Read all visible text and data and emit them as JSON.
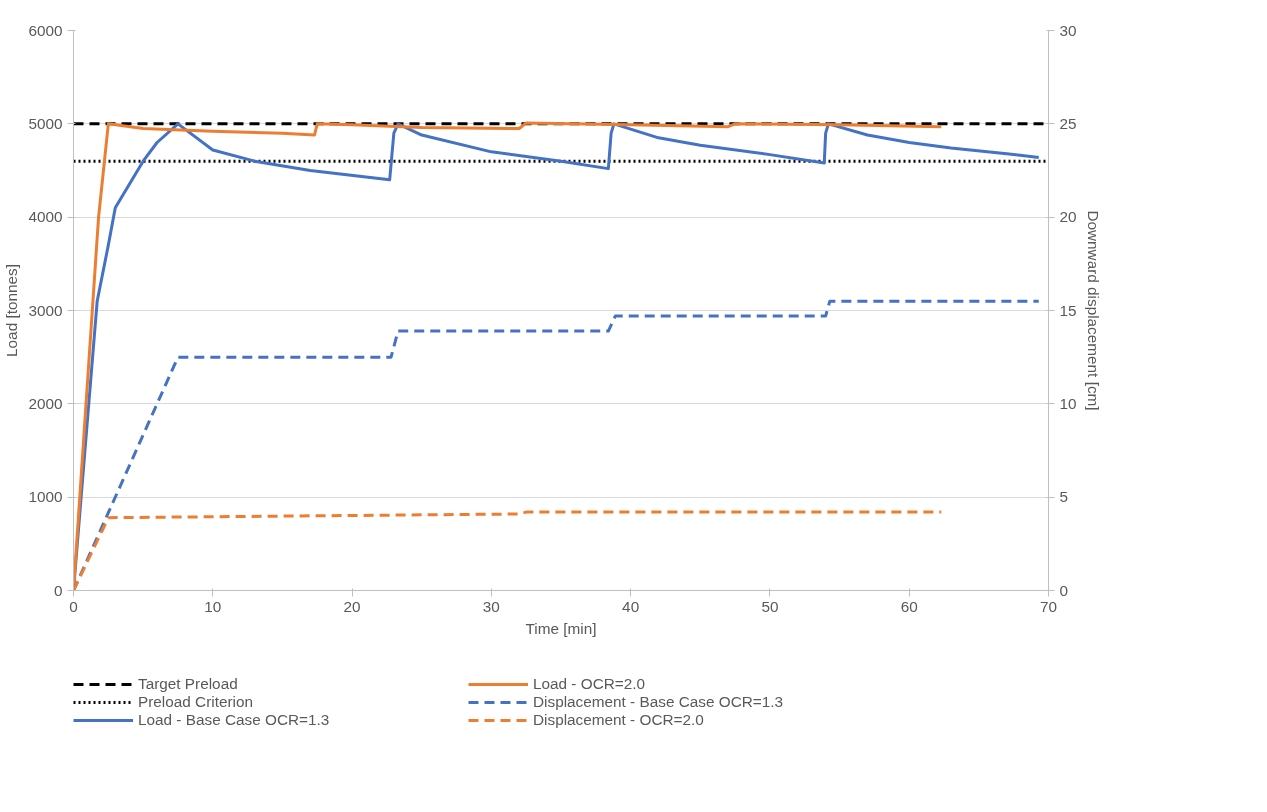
{
  "chart_data": {
    "type": "line",
    "xlabel": "Time [min]",
    "ylabel": "Load [tonnes]",
    "y2label": "Downward displacement [cm]",
    "xlim": [
      0,
      70
    ],
    "xticks": [
      0,
      10,
      20,
      30,
      40,
      50,
      60,
      70
    ],
    "ylim": [
      0,
      6000
    ],
    "yticks": [
      0,
      1000,
      2000,
      3000,
      4000,
      5000,
      6000
    ],
    "y2lim": [
      0,
      30
    ],
    "y2ticks": [
      0,
      5,
      10,
      15,
      20,
      25,
      30
    ],
    "grid": "y",
    "legend": "bottom",
    "ref_lines": [
      {
        "axis": "y",
        "value": 5000,
        "label": "Target Preload",
        "color": "#000000",
        "line_style": "dashed"
      },
      {
        "axis": "y",
        "value": 4600,
        "label": "Preload Criterion",
        "color": "#000000",
        "line_style": "dotted"
      }
    ],
    "series": [
      {
        "name": "Load - Base Case OCR=1.3",
        "color": "#4472c4",
        "line_style": "solid",
        "x": [
          0,
          1.7,
          2.5,
          3,
          4,
          5,
          6,
          7.5,
          10,
          13,
          17,
          22.7,
          23,
          23.3,
          25,
          30,
          35,
          38.4,
          38.6,
          38.8,
          42,
          45,
          50,
          53.9,
          54.0,
          54.2,
          57,
          60,
          63,
          67,
          69.3
        ],
        "values": [
          0,
          3100,
          3700,
          4100,
          4350,
          4600,
          4800,
          5000,
          4720,
          4600,
          4500,
          4400,
          4900,
          5000,
          4880,
          4700,
          4600,
          4520,
          4900,
          5000,
          4850,
          4770,
          4670,
          4580,
          4900,
          5000,
          4880,
          4800,
          4740,
          4680,
          4640
        ]
      },
      {
        "name": "Load - OCR=2.0",
        "color": "#ed7d31",
        "line_style": "solid",
        "x": [
          0,
          1.8,
          2.5,
          5,
          10,
          15,
          17.3,
          17.5,
          20,
          25,
          32,
          32.5,
          40,
          47,
          47.5,
          55,
          62.3
        ],
        "values": [
          0,
          4000,
          5000,
          4950,
          4920,
          4900,
          4880,
          5000,
          4990,
          4960,
          4950,
          5010,
          4990,
          4970,
          5000,
          4990,
          4970
        ]
      },
      {
        "name": "Displacement - Base Case OCR=1.3",
        "color": "#4472c4",
        "line_style": "dashed",
        "axis": "y2",
        "x": [
          0,
          7.5,
          22.8,
          23.3,
          38.4,
          38.9,
          54,
          54.3,
          69.3
        ],
        "values": [
          0,
          12.5,
          12.5,
          13.9,
          13.9,
          14.7,
          14.7,
          15.5,
          15.5
        ]
      },
      {
        "name": "Displacement - OCR=2.0",
        "color": "#ed7d31",
        "line_style": "dashed",
        "axis": "y2",
        "x": [
          0,
          2.5,
          32,
          32.5,
          62.3
        ],
        "values": [
          0,
          3.9,
          4.1,
          4.2,
          4.2
        ]
      }
    ]
  }
}
